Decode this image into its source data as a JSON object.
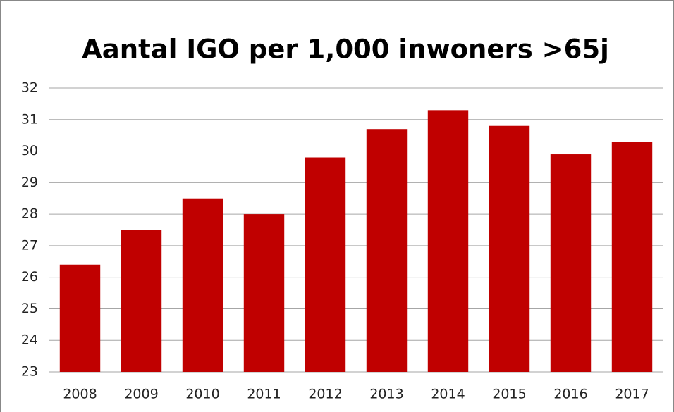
{
  "chart_data": {
    "type": "bar",
    "title": "Aantal IGO per 1,000 inwoners >65j",
    "categories": [
      "2008",
      "2009",
      "2010",
      "2011",
      "2012",
      "2013",
      "2014",
      "2015",
      "2016",
      "2017"
    ],
    "values": [
      26.4,
      27.5,
      28.5,
      28.0,
      29.8,
      30.7,
      31.3,
      30.8,
      29.9,
      30.3
    ],
    "color": "#c00000",
    "ylim": [
      23,
      32
    ],
    "yticks": [
      23,
      24,
      25,
      26,
      27,
      28,
      29,
      30,
      31,
      32
    ],
    "grid": true
  }
}
